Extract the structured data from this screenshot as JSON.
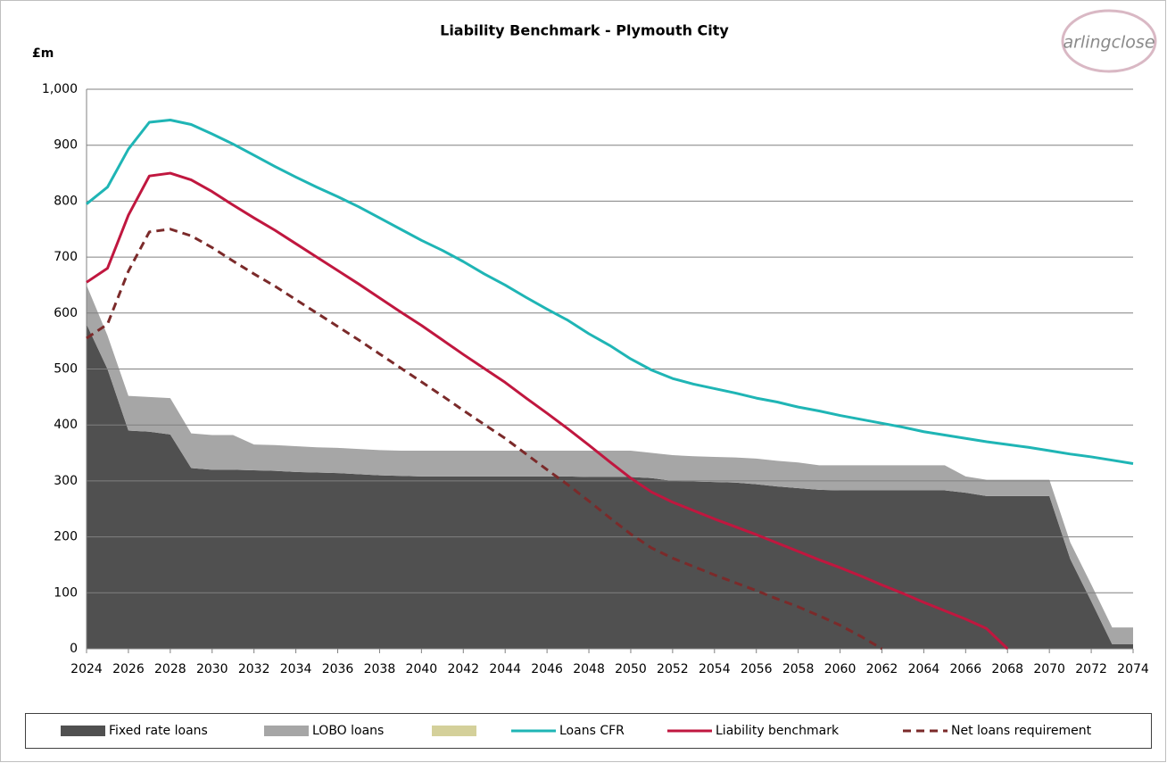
{
  "chart_data": {
    "type": "area",
    "stacked": true,
    "title": "Liability Benchmark - Plymouth City",
    "y_label": "£m",
    "logo_text": "arlingclose",
    "x": [
      2024,
      2025,
      2026,
      2027,
      2028,
      2029,
      2030,
      2031,
      2032,
      2033,
      2034,
      2035,
      2036,
      2037,
      2038,
      2039,
      2040,
      2041,
      2042,
      2043,
      2044,
      2045,
      2046,
      2047,
      2048,
      2049,
      2050,
      2051,
      2052,
      2053,
      2054,
      2055,
      2056,
      2057,
      2058,
      2059,
      2060,
      2061,
      2062,
      2063,
      2064,
      2065,
      2066,
      2067,
      2068,
      2069,
      2070,
      2071,
      2072,
      2073,
      2074
    ],
    "xlim": [
      2024,
      2074
    ],
    "xticks": [
      2024,
      2026,
      2028,
      2030,
      2032,
      2034,
      2036,
      2038,
      2040,
      2042,
      2044,
      2046,
      2048,
      2050,
      2052,
      2054,
      2056,
      2058,
      2060,
      2062,
      2064,
      2066,
      2068,
      2070,
      2072,
      2074
    ],
    "ylim": [
      0,
      1000
    ],
    "yticks": [
      0,
      100,
      200,
      300,
      400,
      500,
      600,
      700,
      800,
      900,
      {
        "value": 1000,
        "label": "1,000"
      }
    ],
    "grid": true,
    "legend": "bottom",
    "series": [
      {
        "name": "Fixed rate loans",
        "type": "area",
        "color": "#505050",
        "values": [
          580,
          500,
          390,
          388,
          383,
          323,
          320,
          320,
          319,
          318,
          316,
          315,
          314,
          312,
          310,
          309,
          308,
          308,
          308,
          308,
          308,
          308,
          308,
          308,
          307,
          307,
          307,
          305,
          300,
          299,
          298,
          297,
          294,
          290,
          287,
          284,
          283,
          283,
          283,
          283,
          283,
          283,
          279,
          273,
          273,
          273,
          273,
          160,
          85,
          8,
          8
        ]
      },
      {
        "name": "LOBO loans",
        "type": "area",
        "color": "#a6a6a6",
        "values": [
          70,
          60,
          62,
          62,
          65,
          62,
          62,
          62,
          46,
          46,
          46,
          45,
          45,
          45,
          45,
          45,
          46,
          46,
          46,
          46,
          46,
          46,
          46,
          46,
          47,
          47,
          47,
          45,
          46,
          45,
          45,
          45,
          46,
          46,
          46,
          44,
          45,
          45,
          45,
          45,
          45,
          45,
          29,
          29,
          29,
          29,
          29,
          30,
          30,
          30,
          30
        ]
      },
      {
        "type": "area",
        "color": "#d4d09a"
      },
      {
        "name": "Loans CFR",
        "type": "line",
        "color": "#1fb5b5",
        "values": [
          795,
          825,
          893,
          941,
          945,
          937,
          920,
          902,
          882,
          862,
          843,
          825,
          808,
          790,
          770,
          750,
          730,
          712,
          692,
          670,
          650,
          628,
          607,
          587,
          563,
          542,
          518,
          498,
          483,
          473,
          465,
          457,
          448,
          441,
          432,
          425,
          417,
          410,
          403,
          396,
          388,
          382,
          376,
          370,
          365,
          360,
          354,
          348,
          343,
          337,
          331
        ]
      },
      {
        "name": "Liability benchmark",
        "type": "line",
        "color": "#c0173f",
        "values": [
          655,
          680,
          775,
          845,
          850,
          838,
          817,
          793,
          770,
          748,
          724,
          700,
          676,
          652,
          627,
          602,
          578,
          552,
          526,
          501,
          476,
          448,
          421,
          393,
          364,
          334,
          305,
          280,
          262,
          247,
          232,
          218,
          204,
          189,
          174,
          159,
          145,
          130,
          114,
          99,
          83,
          68,
          53,
          36,
          0,
          null,
          null,
          null,
          null,
          null,
          null
        ]
      },
      {
        "name": "Net loans requirement",
        "type": "line",
        "dash": true,
        "color": "#7b2a2a",
        "values": [
          555,
          580,
          675,
          745,
          750,
          738,
          717,
          693,
          670,
          648,
          624,
          600,
          576,
          552,
          527,
          502,
          477,
          452,
          426,
          401,
          376,
          348,
          320,
          293,
          264,
          234,
          205,
          180,
          162,
          147,
          132,
          118,
          104,
          89,
          75,
          59,
          42,
          22,
          0,
          null,
          null,
          null,
          null,
          null,
          null,
          null,
          null,
          null,
          null,
          null,
          null
        ]
      }
    ]
  }
}
